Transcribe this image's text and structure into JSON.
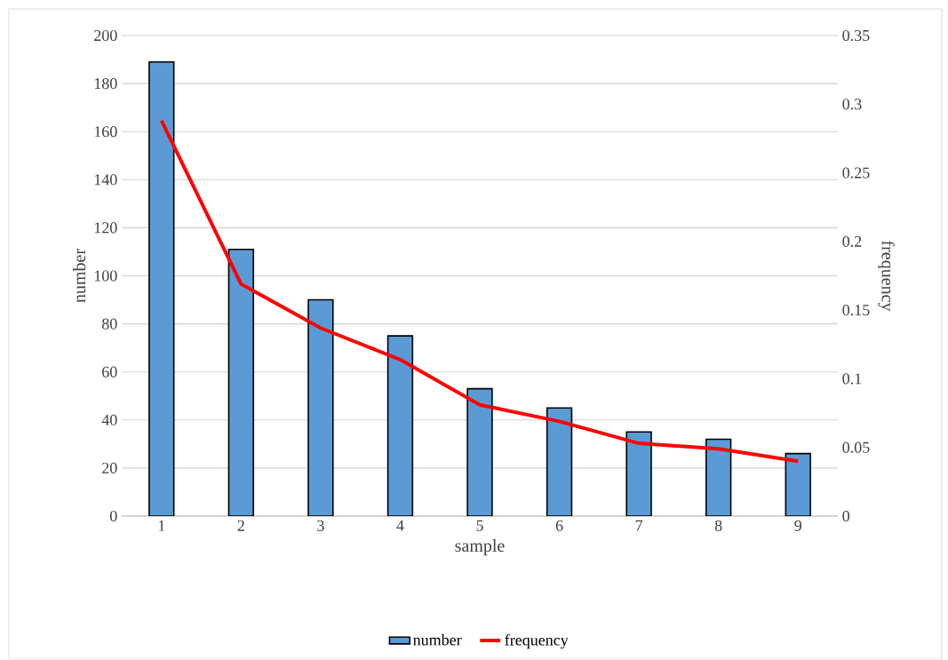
{
  "chart_data": {
    "type": "bar",
    "xlabel": "sample",
    "ylabel": "number",
    "y2label": "frequency",
    "categories": [
      "1",
      "2",
      "3",
      "4",
      "5",
      "6",
      "7",
      "8",
      "9"
    ],
    "series": [
      {
        "name": "number",
        "color": "#5b9bd5",
        "values": [
          189,
          111,
          90,
          75,
          53,
          45,
          35,
          32,
          26
        ]
      },
      {
        "name": "frequency",
        "type": "line",
        "axis": "y2",
        "color": "#ff0000",
        "values": [
          0.288,
          0.169,
          0.137,
          0.114,
          0.081,
          0.069,
          0.053,
          0.049,
          0.04
        ]
      }
    ],
    "ylim": [
      0,
      200
    ],
    "yticks": [
      0,
      20,
      40,
      60,
      80,
      100,
      120,
      140,
      160,
      180,
      200
    ],
    "y2lim": [
      0,
      0.35
    ],
    "y2ticks": [
      0,
      0.05,
      0.1,
      0.15,
      0.2,
      0.25,
      0.3,
      0.35
    ],
    "grid": "y",
    "legend": "bottom",
    "line_style": "solid"
  }
}
